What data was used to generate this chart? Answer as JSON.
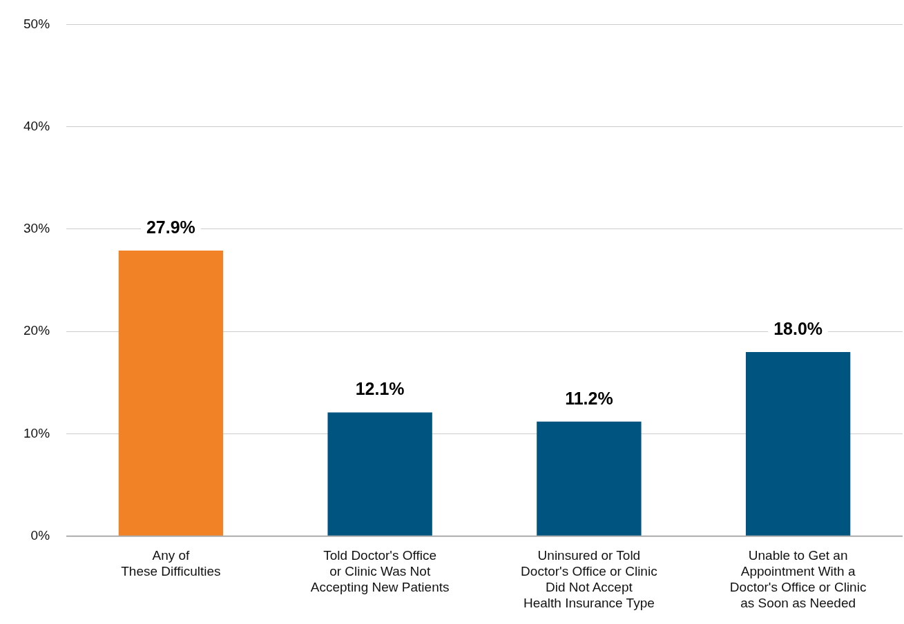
{
  "chart_data": {
    "type": "bar",
    "categories": [
      "Any of\nThese Difficulties",
      "Told Doctor's Office\nor Clinic Was Not\nAccepting New Patients",
      "Uninsured or Told\nDoctor's Office or Clinic\nDid Not Accept\nHealth Insurance Type",
      "Unable to Get an\nAppointment With a\nDoctor's Office or Clinic\nas Soon as Needed"
    ],
    "values": [
      27.9,
      12.1,
      11.2,
      18.0
    ],
    "colors": [
      "#f28226",
      "#005580",
      "#005580",
      "#005580"
    ],
    "ylim": [
      0,
      50
    ],
    "yticks": [
      {
        "value": 0,
        "label": "0%"
      },
      {
        "value": 10,
        "label": "10%"
      },
      {
        "value": 20,
        "label": "20%"
      },
      {
        "value": 30,
        "label": "30%"
      },
      {
        "value": 40,
        "label": "40%"
      },
      {
        "value": 50,
        "label": "50%"
      }
    ],
    "value_labels": [
      "27.9%",
      "12.1%",
      "11.2%",
      "18.0%"
    ],
    "grid": "y"
  }
}
